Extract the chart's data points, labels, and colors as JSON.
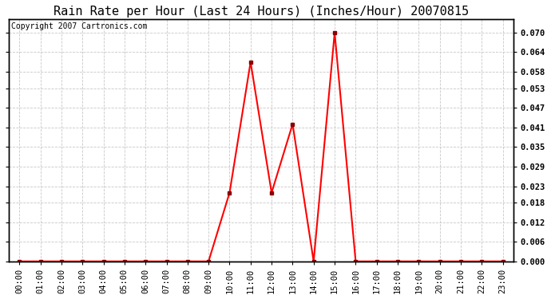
{
  "title": "Rain Rate per Hour (Last 24 Hours) (Inches/Hour) 20070815",
  "copyright": "Copyright 2007 Cartronics.com",
  "hours": [
    0,
    1,
    2,
    3,
    4,
    5,
    6,
    7,
    8,
    9,
    10,
    11,
    12,
    13,
    14,
    15,
    16,
    17,
    18,
    19,
    20,
    21,
    22,
    23
  ],
  "values": [
    0.0,
    0.0,
    0.0,
    0.0,
    0.0,
    0.0,
    0.0,
    0.0,
    0.0,
    0.0,
    0.021,
    0.061,
    0.021,
    0.042,
    0.0,
    0.07,
    0.0,
    0.0,
    0.0,
    0.0,
    0.0,
    0.0,
    0.0,
    0.0
  ],
  "hour_labels": [
    "00:00",
    "01:00",
    "02:00",
    "03:00",
    "04:00",
    "05:00",
    "06:00",
    "07:00",
    "08:00",
    "09:00",
    "10:00",
    "11:00",
    "12:00",
    "13:00",
    "14:00",
    "15:00",
    "16:00",
    "17:00",
    "18:00",
    "19:00",
    "20:00",
    "21:00",
    "22:00",
    "23:00"
  ],
  "yticks": [
    0.0,
    0.006,
    0.012,
    0.018,
    0.023,
    0.029,
    0.035,
    0.041,
    0.047,
    0.053,
    0.058,
    0.064,
    0.07
  ],
  "line_color": "#ff0000",
  "marker_color": "#8b0000",
  "bg_color": "#ffffff",
  "plot_bg_color": "#ffffff",
  "grid_color": "#c8c8c8",
  "title_fontsize": 11,
  "copyright_fontsize": 7,
  "tick_fontsize": 7.5,
  "ylim": [
    0.0,
    0.074
  ],
  "figwidth": 6.9,
  "figheight": 3.75
}
